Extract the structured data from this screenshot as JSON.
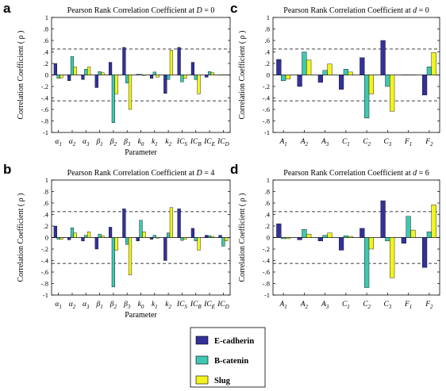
{
  "legend": [
    {
      "name": "E-cadherin",
      "color": "#34319a"
    },
    {
      "name": "B-catenin",
      "color": "#3fc7b1"
    },
    {
      "name": "Slug",
      "color": "#f3f31f"
    }
  ],
  "chart_data": [
    {
      "panel": "a",
      "type": "bar",
      "title": "Pearson Rank Correlation Coefficient at ",
      "title_var": "D",
      "title_val": " = 0",
      "xlabel": "Parameter",
      "ylabel": "Correlation Coefficient ( ρ )",
      "ylim": [
        -1,
        1
      ],
      "yticks": [
        -1,
        -0.8,
        -0.6,
        -0.4,
        -0.2,
        0,
        0.2,
        0.4,
        0.6,
        0.8,
        1
      ],
      "threshold": 0.45,
      "categories": [
        {
          "b": "α",
          "s": "1"
        },
        {
          "b": "α",
          "s": "2"
        },
        {
          "b": "α",
          "s": "3"
        },
        {
          "b": "β",
          "s": "1"
        },
        {
          "b": "β",
          "s": "2"
        },
        {
          "b": "β",
          "s": "3"
        },
        {
          "b": "k",
          "s": "0"
        },
        {
          "b": "k",
          "s": "1"
        },
        {
          "b": "k",
          "s": "2"
        },
        {
          "b": "IC",
          "s": "S"
        },
        {
          "b": "IC",
          "s": "B"
        },
        {
          "b": "IC",
          "s": "E"
        },
        {
          "b": "IC",
          "s": "D"
        }
      ],
      "series": [
        {
          "name": "E-cadherin",
          "values": [
            0.2,
            -0.1,
            -0.08,
            -0.22,
            0.22,
            0.48,
            0.01,
            -0.06,
            -0.32,
            0.48,
            0.22,
            -0.04,
            0.0
          ]
        },
        {
          "name": "B-catenin",
          "values": [
            -0.06,
            0.32,
            0.1,
            0.06,
            -0.83,
            -0.14,
            0.01,
            0.05,
            -0.08,
            -0.12,
            -0.08,
            0.06,
            0.0
          ]
        },
        {
          "name": "Slug",
          "values": [
            -0.05,
            0.14,
            0.14,
            0.04,
            -0.33,
            -0.6,
            -0.01,
            -0.04,
            0.43,
            -0.06,
            -0.33,
            0.04,
            0.0
          ]
        }
      ]
    },
    {
      "panel": "b",
      "type": "bar",
      "title": "Pearson Rank Correlation Coefficient at ",
      "title_var": "D",
      "title_val": " = 4",
      "xlabel": "Parameter",
      "ylabel": "Correlation Coefficient ( ρ )",
      "ylim": [
        -1,
        1
      ],
      "yticks": [
        -1,
        -0.8,
        -0.6,
        -0.4,
        -0.2,
        0,
        0.2,
        0.4,
        0.6,
        0.8,
        1
      ],
      "threshold": 0.45,
      "categories": [
        {
          "b": "α",
          "s": "1"
        },
        {
          "b": "α",
          "s": "2"
        },
        {
          "b": "α",
          "s": "3"
        },
        {
          "b": "β",
          "s": "1"
        },
        {
          "b": "β",
          "s": "2"
        },
        {
          "b": "β",
          "s": "3"
        },
        {
          "b": "k",
          "s": "0"
        },
        {
          "b": "k",
          "s": "1"
        },
        {
          "b": "k",
          "s": "2"
        },
        {
          "b": "IC",
          "s": "S"
        },
        {
          "b": "IC",
          "s": "B"
        },
        {
          "b": "IC",
          "s": "E"
        },
        {
          "b": "IC",
          "s": "D"
        }
      ],
      "series": [
        {
          "name": "E-cadherin",
          "values": [
            0.2,
            -0.04,
            -0.06,
            -0.2,
            0.18,
            0.5,
            -0.06,
            -0.03,
            -0.4,
            0.5,
            0.16,
            0.04,
            0.04
          ]
        },
        {
          "name": "B-catenin",
          "values": [
            -0.03,
            0.17,
            0.04,
            0.06,
            -0.86,
            -0.12,
            0.3,
            0.04,
            0.08,
            -0.05,
            -0.06,
            0.03,
            -0.15
          ]
        },
        {
          "name": "Slug",
          "values": [
            -0.03,
            0.08,
            0.1,
            0.03,
            -0.22,
            -0.65,
            0.1,
            -0.01,
            0.52,
            -0.03,
            -0.22,
            0.02,
            -0.06
          ]
        }
      ]
    },
    {
      "panel": "c",
      "type": "bar",
      "title": "Pearson Rank Correlation Coefficient at ",
      "title_var": "d",
      "title_val": " = 0",
      "xlabel": "",
      "ylabel": "Correlation Coefficient ( ρ )",
      "ylim": [
        -1,
        1
      ],
      "yticks": [
        -1,
        -0.8,
        -0.6,
        -0.4,
        -0.2,
        0,
        0.2,
        0.4,
        0.6,
        0.8,
        1
      ],
      "threshold": 0.45,
      "categories": [
        {
          "b": "A",
          "s": "1"
        },
        {
          "b": "A",
          "s": "2"
        },
        {
          "b": "A",
          "s": "3"
        },
        {
          "b": "C",
          "s": "1"
        },
        {
          "b": "C",
          "s": "2"
        },
        {
          "b": "C",
          "s": "3"
        },
        {
          "b": "F",
          "s": "1"
        },
        {
          "b": "F",
          "s": "2"
        }
      ],
      "series": [
        {
          "name": "E-cadherin",
          "values": [
            0.27,
            -0.2,
            -0.13,
            -0.25,
            0.3,
            0.6,
            0.0,
            -0.35
          ]
        },
        {
          "name": "B-catenin",
          "values": [
            -0.1,
            0.4,
            0.08,
            0.1,
            -0.75,
            -0.2,
            0.0,
            0.14
          ]
        },
        {
          "name": "Slug",
          "values": [
            -0.07,
            0.26,
            0.19,
            0.05,
            -0.33,
            -0.63,
            0.0,
            0.39
          ]
        }
      ]
    },
    {
      "panel": "d",
      "type": "bar",
      "title": "Pearson Rank Correlation Coefficient at ",
      "title_var": "d",
      "title_val": " = 6",
      "xlabel": "",
      "ylabel": "Correlation Coefficient ( ρ )",
      "ylim": [
        -1,
        1
      ],
      "yticks": [
        -1,
        -0.8,
        -0.6,
        -0.4,
        -0.2,
        0,
        0.2,
        0.4,
        0.6,
        0.8,
        1
      ],
      "threshold": 0.45,
      "categories": [
        {
          "b": "A",
          "s": "1"
        },
        {
          "b": "A",
          "s": "2"
        },
        {
          "b": "A",
          "s": "3"
        },
        {
          "b": "C",
          "s": "1"
        },
        {
          "b": "C",
          "s": "2"
        },
        {
          "b": "C",
          "s": "3"
        },
        {
          "b": "F",
          "s": "1"
        },
        {
          "b": "F",
          "s": "2"
        }
      ],
      "series": [
        {
          "name": "E-cadherin",
          "values": [
            0.24,
            -0.04,
            -0.06,
            -0.22,
            0.16,
            0.64,
            -0.1,
            -0.52
          ]
        },
        {
          "name": "B-catenin",
          "values": [
            -0.02,
            0.14,
            0.04,
            0.03,
            -0.87,
            -0.06,
            0.37,
            0.1
          ]
        },
        {
          "name": "Slug",
          "values": [
            -0.02,
            0.06,
            0.08,
            0.02,
            -0.2,
            -0.7,
            0.13,
            0.57
          ]
        }
      ]
    }
  ]
}
